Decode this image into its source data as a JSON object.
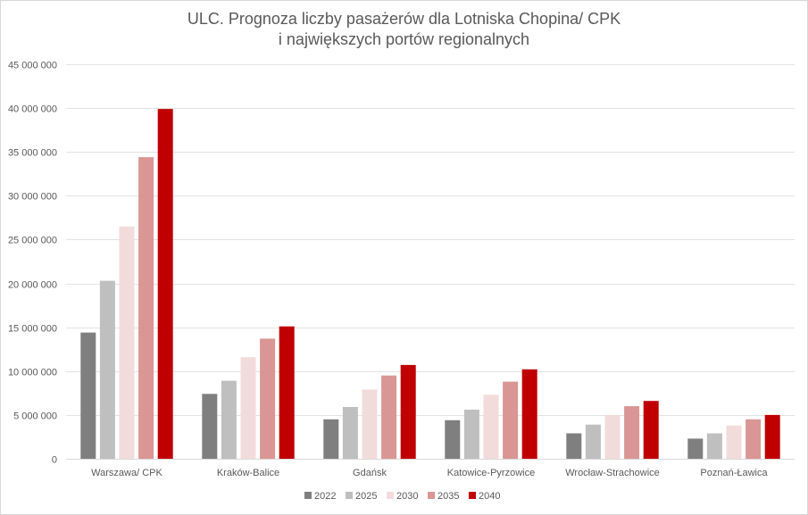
{
  "chart_data": {
    "type": "bar",
    "title_line1": "ULC. Prognoza liczby pasażerów dla Lotniska Chopina/ CPK",
    "title_line2": "i największych portów regionalnych",
    "xlabel": "",
    "ylabel": "",
    "ylim": [
      0,
      45000000
    ],
    "yticks": [
      {
        "value": 0,
        "label": "0"
      },
      {
        "value": 5000000,
        "label": "5 000 000"
      },
      {
        "value": 10000000,
        "label": "10 000 000"
      },
      {
        "value": 15000000,
        "label": "15 000 000"
      },
      {
        "value": 20000000,
        "label": "20 000 000"
      },
      {
        "value": 25000000,
        "label": "25 000 000"
      },
      {
        "value": 30000000,
        "label": "30 000 000"
      },
      {
        "value": 35000000,
        "label": "35 000 000"
      },
      {
        "value": 40000000,
        "label": "40 000 000"
      },
      {
        "value": 45000000,
        "label": "45 000 000"
      }
    ],
    "grid": true,
    "legend_position": "bottom",
    "categories": [
      "Warszawa/ CPK",
      "Kraków-Balice",
      "Gdańsk",
      "Katowice-Pyrzowice",
      "Wrocław-Strachowice",
      "Poznań-Ławica"
    ],
    "series": [
      {
        "name": "2022",
        "color": "#7f7f7f",
        "values": [
          14400000,
          7400000,
          4500000,
          4400000,
          2900000,
          2300000
        ]
      },
      {
        "name": "2025",
        "color": "#bfbfbf",
        "values": [
          20300000,
          8900000,
          5900000,
          5600000,
          3900000,
          2900000
        ]
      },
      {
        "name": "2030",
        "color": "#f2dcdb",
        "values": [
          26500000,
          11600000,
          7900000,
          7300000,
          5000000,
          3800000
        ]
      },
      {
        "name": "2035",
        "color": "#d99694",
        "values": [
          34400000,
          13700000,
          9500000,
          8800000,
          6000000,
          4500000
        ]
      },
      {
        "name": "2040",
        "color": "#c00000",
        "values": [
          39900000,
          15100000,
          10700000,
          10200000,
          6600000,
          5000000
        ]
      }
    ]
  }
}
